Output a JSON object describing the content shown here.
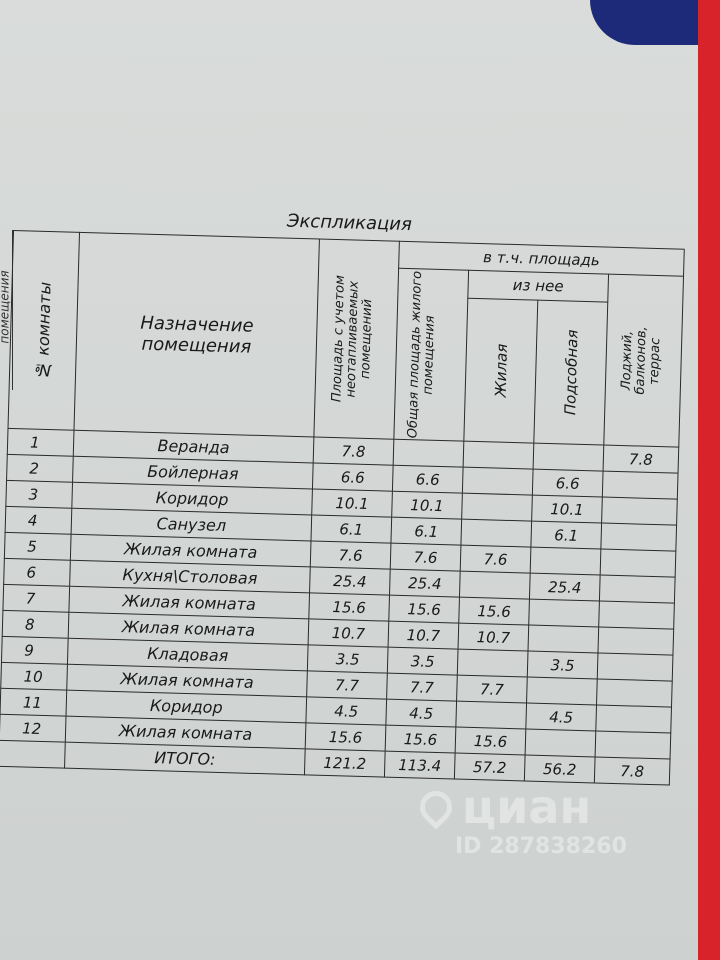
{
  "title": "Экспликация",
  "side_label": "помещения",
  "headers": {
    "number": "№ комнаты",
    "purpose": "Назначение помещения",
    "area_total": "Площадь с учетом неотапливаемых помещений",
    "including": "в т.ч. площадь",
    "living_total": "Общая площадь жилого помещения",
    "of_which": "из нее",
    "living": "Жилая",
    "auxiliary": "Подсобная",
    "loggia": "Лоджий, балконов, террас"
  },
  "rows": [
    {
      "n": "1",
      "name": "Веранда",
      "area": "7.8",
      "total": "",
      "living": "",
      "aux": "",
      "loggia": "7.8"
    },
    {
      "n": "2",
      "name": "Бойлерная",
      "area": "6.6",
      "total": "6.6",
      "living": "",
      "aux": "6.6",
      "loggia": ""
    },
    {
      "n": "3",
      "name": "Коридор",
      "area": "10.1",
      "total": "10.1",
      "living": "",
      "aux": "10.1",
      "loggia": ""
    },
    {
      "n": "4",
      "name": "Санузел",
      "area": "6.1",
      "total": "6.1",
      "living": "",
      "aux": "6.1",
      "loggia": ""
    },
    {
      "n": "5",
      "name": "Жилая комната",
      "area": "7.6",
      "total": "7.6",
      "living": "7.6",
      "aux": "",
      "loggia": ""
    },
    {
      "n": "6",
      "name": "Кухня\\Столовая",
      "area": "25.4",
      "total": "25.4",
      "living": "",
      "aux": "25.4",
      "loggia": ""
    },
    {
      "n": "7",
      "name": "Жилая комната",
      "area": "15.6",
      "total": "15.6",
      "living": "15.6",
      "aux": "",
      "loggia": ""
    },
    {
      "n": "8",
      "name": "Жилая комната",
      "area": "10.7",
      "total": "10.7",
      "living": "10.7",
      "aux": "",
      "loggia": ""
    },
    {
      "n": "9",
      "name": "Кладовая",
      "area": "3.5",
      "total": "3.5",
      "living": "",
      "aux": "3.5",
      "loggia": ""
    },
    {
      "n": "10",
      "name": "Жилая комната",
      "area": "7.7",
      "total": "7.7",
      "living": "7.7",
      "aux": "",
      "loggia": ""
    },
    {
      "n": "11",
      "name": "Коридор",
      "area": "4.5",
      "total": "4.5",
      "living": "",
      "aux": "4.5",
      "loggia": ""
    },
    {
      "n": "12",
      "name": "Жилая комната",
      "area": "15.6",
      "total": "15.6",
      "living": "15.6",
      "aux": "",
      "loggia": ""
    }
  ],
  "total": {
    "label": "ИТОГО:",
    "area": "121.2",
    "total": "113.4",
    "living": "57.2",
    "aux": "56.2",
    "loggia": "7.8"
  },
  "watermark": {
    "brand": "циан",
    "id": "ID 287838260"
  }
}
